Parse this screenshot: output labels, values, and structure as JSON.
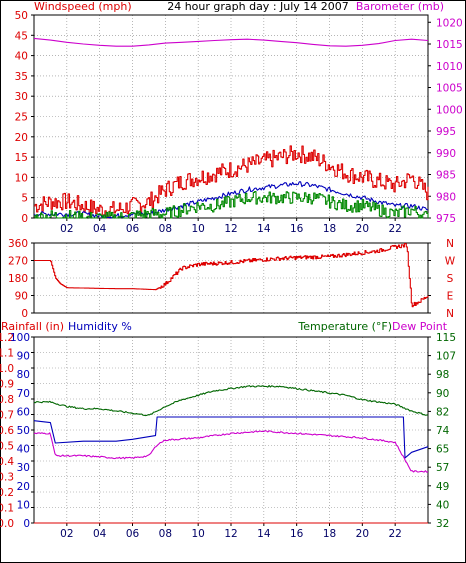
{
  "header": {
    "title": "24 hour graph day : July 14 2007"
  },
  "colors": {
    "wind": "#dd0000",
    "gust": "#0000bb",
    "green": "#008800",
    "baro": "#cc00cc",
    "temperature": "#006600",
    "dew": "#cc00cc",
    "humidity": "#0000bb",
    "rain": "#dd0000",
    "frame": "#000000",
    "grid": "#8a8a8a"
  },
  "x_ticks": [
    "02",
    "04",
    "06",
    "08",
    "10",
    "12",
    "14",
    "16",
    "18",
    "20",
    "22"
  ],
  "chart_data": [
    {
      "type": "line",
      "panel": "wind-barometer",
      "y_left": {
        "label": "Windspeed (mph)",
        "ticks": [
          "0",
          "5",
          "10",
          "15",
          "20",
          "25",
          "30",
          "35",
          "40",
          "45",
          "50"
        ],
        "range": [
          0,
          50
        ]
      },
      "y_right": {
        "label": "Barometer (mb)",
        "ticks": [
          "975",
          "980",
          "985",
          "990",
          "995",
          "1000",
          "1005",
          "1010",
          "1015",
          "1020"
        ],
        "range": [
          975,
          1021.67
        ]
      },
      "x_range_hours": [
        0,
        24
      ],
      "grid": true,
      "series": [
        {
          "key": "barometer",
          "axis": "right",
          "x": [
            0,
            1,
            2,
            3,
            4,
            5,
            6,
            7,
            8,
            9,
            10,
            11,
            12,
            13,
            14,
            15,
            16,
            17,
            18,
            19,
            20,
            21,
            22,
            23,
            24
          ],
          "values": [
            1016.3,
            1015.9,
            1015.4,
            1015.0,
            1014.7,
            1014.5,
            1014.5,
            1014.8,
            1015.2,
            1015.4,
            1015.6,
            1015.8,
            1016.0,
            1016.1,
            1015.9,
            1015.6,
            1015.3,
            1014.9,
            1014.6,
            1014.5,
            1014.7,
            1015.1,
            1015.8,
            1016.1,
            1015.8
          ]
        },
        {
          "key": "wind_gust",
          "axis": "left",
          "x": [
            0,
            1,
            2,
            3,
            4,
            5,
            6,
            7,
            8,
            9,
            10,
            11,
            12,
            13,
            14,
            15,
            16,
            17,
            18,
            19,
            20,
            21,
            22,
            23,
            24
          ],
          "values": [
            3,
            4,
            4,
            3,
            2,
            2,
            3,
            4,
            7,
            9,
            10,
            11,
            12,
            13,
            14,
            15,
            16,
            15,
            13,
            11,
            10,
            9,
            8,
            10,
            6
          ]
        },
        {
          "key": "wind_average",
          "axis": "left",
          "x": [
            0,
            1,
            2,
            3,
            4,
            5,
            6,
            7,
            8,
            9,
            10,
            11,
            12,
            13,
            14,
            15,
            16,
            17,
            18,
            19,
            20,
            21,
            22,
            23,
            24
          ],
          "values": [
            1,
            1,
            1,
            1,
            0.5,
            0.5,
            1,
            1,
            2,
            3,
            4,
            5,
            6,
            7,
            7.5,
            8,
            8.5,
            8,
            7,
            6,
            5,
            4,
            3,
            3,
            2
          ]
        },
        {
          "key": "wind_low",
          "axis": "left",
          "x": [
            0,
            1,
            2,
            3,
            4,
            5,
            6,
            7,
            8,
            9,
            10,
            11,
            12,
            13,
            14,
            15,
            16,
            17,
            18,
            19,
            20,
            21,
            22,
            23,
            24
          ],
          "values": [
            0,
            0.5,
            0.5,
            0,
            0,
            0,
            0.5,
            1,
            1,
            2,
            3,
            3,
            4,
            5,
            5,
            5,
            5,
            5,
            4,
            3,
            3,
            2,
            1,
            2,
            0
          ]
        }
      ]
    },
    {
      "type": "line",
      "panel": "wind-direction",
      "y_left": {
        "label": "",
        "ticks": [
          "0",
          "90",
          "180",
          "270",
          "360"
        ],
        "range": [
          0,
          360
        ]
      },
      "y_right": {
        "label": "",
        "ticks": [
          "N",
          "E",
          "S",
          "W",
          "N"
        ]
      },
      "x_range_hours": [
        0,
        24
      ],
      "grid": true,
      "series": [
        {
          "key": "wind_direction",
          "axis": "left",
          "x": [
            0,
            1.0,
            1.3,
            1.6,
            2.0,
            5.0,
            6.0,
            7.4,
            8.0,
            9.0,
            10.0,
            12.0,
            14.0,
            16.0,
            18.0,
            20.0,
            21.0,
            22.0,
            22.7,
            23.0,
            23.5,
            24.0
          ],
          "values": [
            270,
            270,
            180,
            150,
            130,
            125,
            125,
            120,
            150,
            230,
            250,
            260,
            275,
            285,
            290,
            310,
            320,
            340,
            350,
            40,
            60,
            90
          ]
        }
      ]
    },
    {
      "type": "line",
      "panel": "temperature-humidity-rain",
      "y_left": {
        "label": "Rainfall (in)",
        "ticks": [
          "0.0",
          "0.1",
          "0.2",
          "0.3",
          "0.4",
          "0.5",
          "0.6",
          "0.7",
          "0.8",
          "0.9",
          "1.0",
          "1.1",
          "1.2"
        ],
        "range": [
          0,
          1.2
        ]
      },
      "y_humidity": {
        "label": "Humidity %",
        "ticks": [
          "0",
          "10",
          "20",
          "30",
          "40",
          "50",
          "60",
          "70",
          "80",
          "90",
          "100"
        ],
        "range": [
          0,
          100
        ]
      },
      "y_right": {
        "label": "Temperature (°F)",
        "label2": "Dew Point",
        "ticks": [
          "32",
          "40",
          "49",
          "57",
          "65",
          "74",
          "82",
          "90",
          "98",
          "107",
          "115"
        ],
        "range": [
          32,
          115
        ]
      },
      "x_range_hours": [
        0,
        24
      ],
      "grid": true,
      "series": [
        {
          "key": "temperature",
          "axis": "right",
          "x": [
            0,
            1,
            2,
            3,
            4,
            5,
            6,
            7,
            8,
            9,
            10,
            11,
            12,
            13,
            14,
            15,
            16,
            17,
            18,
            19,
            20,
            21,
            22,
            23,
            24
          ],
          "values": [
            86,
            86,
            84,
            83,
            83,
            82,
            81,
            80,
            84,
            87,
            89,
            91,
            92,
            93,
            93,
            93,
            92,
            91,
            90,
            89,
            87,
            86,
            85,
            82,
            80
          ]
        },
        {
          "key": "humidity",
          "axis": "humidity",
          "x": [
            0,
            1,
            1.3,
            3,
            5,
            6,
            7.4,
            7.5,
            10,
            14,
            18,
            20,
            22.5,
            22.6,
            23,
            24
          ],
          "values": [
            55,
            54,
            43,
            44,
            44,
            45,
            47,
            57,
            57,
            57,
            57,
            57,
            57,
            35,
            38,
            41
          ]
        },
        {
          "key": "dew_point",
          "axis": "right",
          "x": [
            0,
            1,
            1.3,
            3,
            5,
            6,
            7,
            7.5,
            8,
            10,
            12,
            14,
            16,
            18,
            20,
            22,
            23,
            24
          ],
          "values": [
            72,
            72,
            62,
            62,
            61,
            61,
            62,
            67,
            69,
            70,
            72,
            73,
            72,
            71,
            70,
            68,
            55,
            55
          ]
        },
        {
          "key": "rainfall",
          "axis": "left",
          "x": [
            0,
            24
          ],
          "values": [
            0,
            0
          ]
        }
      ]
    }
  ]
}
